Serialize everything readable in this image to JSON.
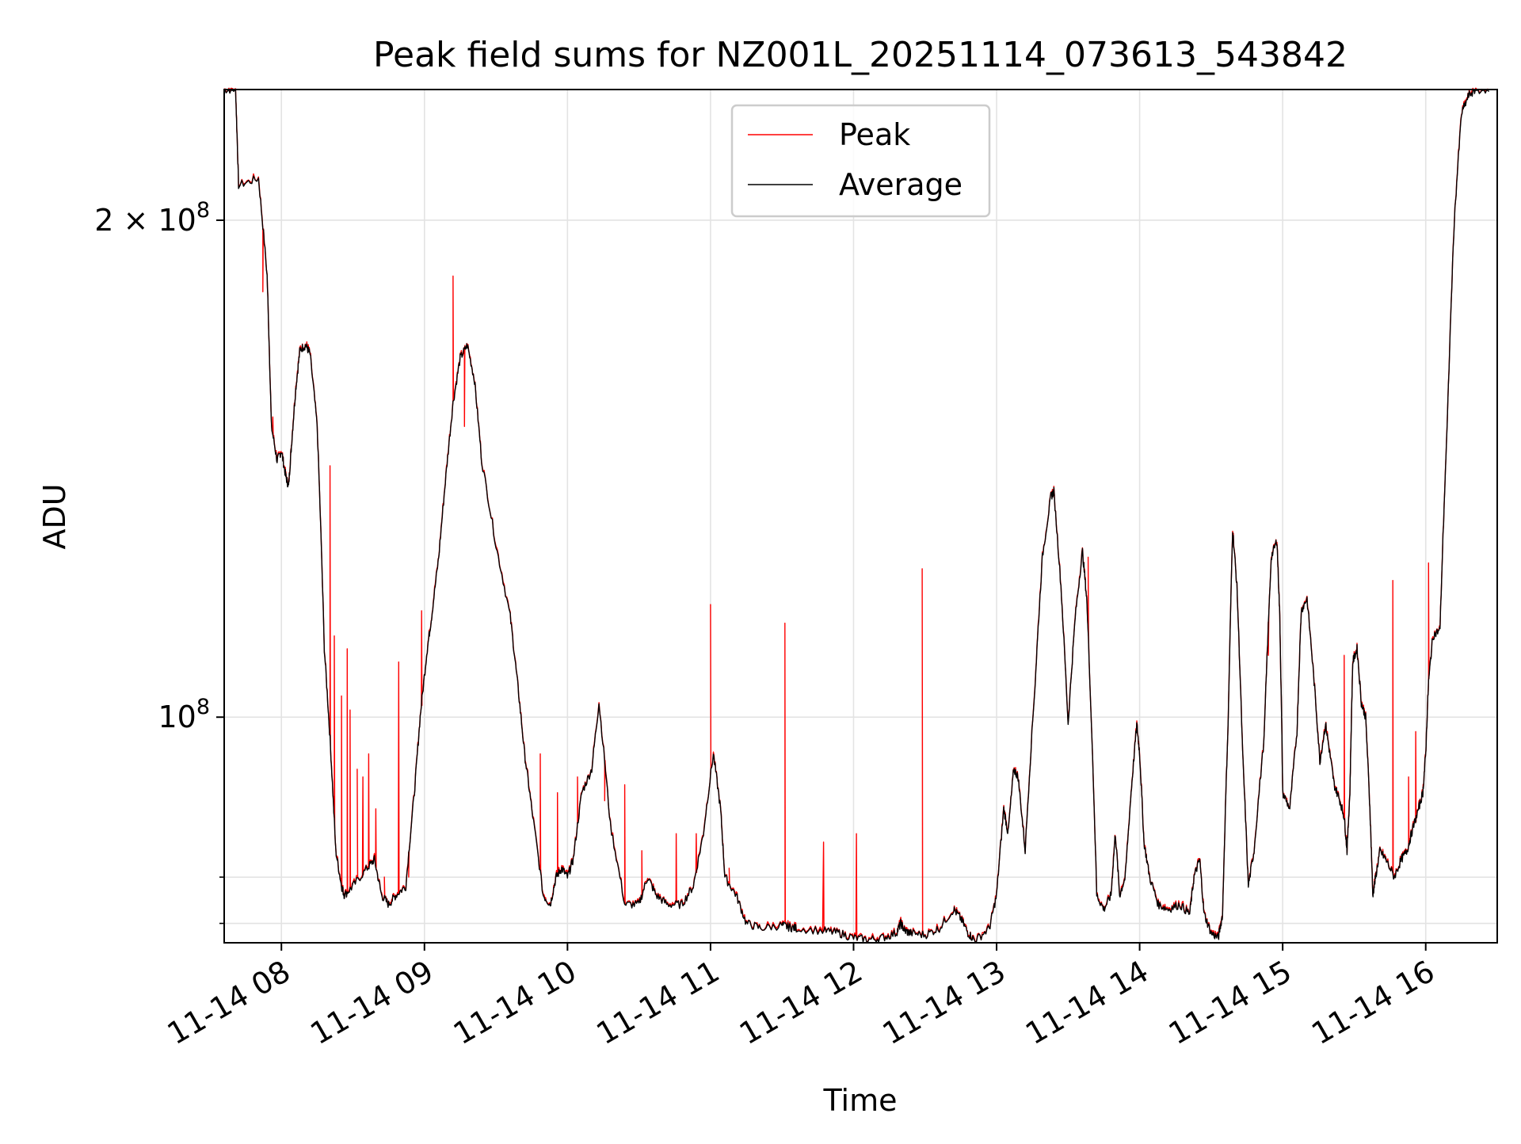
{
  "chart_data": {
    "type": "line",
    "title": "Peak field sums for NZ001L_20251114_073613_543842",
    "xlabel": "Time",
    "ylabel": "ADU",
    "yscale": "log",
    "grid": true,
    "legend_position": "top-center",
    "xlim": [
      7.6,
      16.5
    ],
    "ylim": [
      73000000,
      240000000
    ],
    "x_ticks": [
      {
        "value": 8,
        "label": "11-14 08"
      },
      {
        "value": 9,
        "label": "11-14 09"
      },
      {
        "value": 10,
        "label": "11-14 10"
      },
      {
        "value": 11,
        "label": "11-14 11"
      },
      {
        "value": 12,
        "label": "11-14 12"
      },
      {
        "value": 13,
        "label": "11-14 13"
      },
      {
        "value": 14,
        "label": "11-14 14"
      },
      {
        "value": 15,
        "label": "11-14 15"
      },
      {
        "value": 16,
        "label": "11-14 16"
      }
    ],
    "y_major_ticks": [
      {
        "value": 100000000,
        "label": "10",
        "sup": "8"
      },
      {
        "value": 200000000,
        "label": "2 × 10",
        "sup": "8"
      }
    ],
    "y_minor_ticks": [
      75000000,
      80000000
    ],
    "series": [
      {
        "name": "Average",
        "color": "#000000"
      },
      {
        "name": "Peak",
        "color": "#ff0000"
      }
    ],
    "average_x_hours": [
      7.6,
      7.68,
      7.7,
      7.84,
      7.9,
      7.93,
      7.97,
      8.0,
      8.03,
      8.05,
      8.07,
      8.1,
      8.13,
      8.17,
      8.2,
      8.25,
      8.3,
      8.34,
      8.38,
      8.42,
      8.44,
      8.5,
      8.6,
      8.65,
      8.7,
      8.75,
      8.8,
      8.87,
      8.93,
      8.97,
      9.02,
      9.05,
      9.1,
      9.15,
      9.2,
      9.25,
      9.3,
      9.35,
      9.4,
      9.5,
      9.6,
      9.65,
      9.7,
      9.75,
      9.83,
      9.88,
      9.92,
      9.96,
      10.0,
      10.04,
      10.1,
      10.17,
      10.22,
      10.3,
      10.4,
      10.5,
      10.56,
      10.62,
      10.7,
      10.8,
      10.88,
      10.95,
      11.02,
      11.07,
      11.1,
      11.18,
      11.25,
      11.35,
      11.5,
      11.55,
      11.6,
      11.8,
      11.9,
      12.0,
      12.1,
      12.2,
      12.3,
      12.33,
      12.36,
      12.4,
      12.5,
      12.6,
      12.7,
      12.75,
      12.8,
      12.85,
      12.95,
      13.0,
      13.05,
      13.08,
      13.12,
      13.15,
      13.2,
      13.27,
      13.32,
      13.38,
      13.4,
      13.45,
      13.5,
      13.55,
      13.6,
      13.63,
      13.7,
      13.75,
      13.8,
      13.83,
      13.86,
      13.9,
      13.94,
      13.98,
      14.0,
      14.03,
      14.07,
      14.13,
      14.2,
      14.28,
      14.35,
      14.38,
      14.42,
      14.45,
      14.5,
      14.55,
      14.58,
      14.62,
      14.65,
      14.68,
      14.72,
      14.76,
      14.8,
      14.87,
      14.92,
      14.96,
      14.98,
      15.0,
      15.05,
      15.1,
      15.13,
      15.17,
      15.22,
      15.26,
      15.3,
      15.33,
      15.36,
      15.4,
      15.43,
      15.45,
      15.47,
      15.49,
      15.52,
      15.55,
      15.58,
      15.61,
      15.63,
      15.65,
      15.68,
      15.72,
      15.78,
      15.83,
      15.87,
      15.9,
      15.95,
      15.98,
      16.0,
      16.02,
      16.05,
      16.1,
      16.15,
      16.2,
      16.25,
      16.3,
      16.35,
      16.45,
      16.5
    ],
    "average_values": [
      240000000,
      240000000,
      210000000,
      212000000,
      185000000,
      150000000,
      143000000,
      145000000,
      140000000,
      138000000,
      146000000,
      158000000,
      167000000,
      168000000,
      166000000,
      150000000,
      110000000,
      97000000,
      83000000,
      79000000,
      78000000,
      79000000,
      81000000,
      82000000,
      78000000,
      77000000,
      78000000,
      79000000,
      90000000,
      100000000,
      110000000,
      115000000,
      125000000,
      140000000,
      155000000,
      165000000,
      168000000,
      160000000,
      143000000,
      127000000,
      115000000,
      105000000,
      95000000,
      88000000,
      78000000,
      77000000,
      80000000,
      81000000,
      80000000,
      82000000,
      90000000,
      93000000,
      102000000,
      86000000,
      77000000,
      77000000,
      80000000,
      78000000,
      77000000,
      77000000,
      79000000,
      85000000,
      95000000,
      88000000,
      80000000,
      78000000,
      75000000,
      74500000,
      74800000,
      74600000,
      74500000,
      74200000,
      74000000,
      73500000,
      73300000,
      73500000,
      74000000,
      75000000,
      74200000,
      74000000,
      73800000,
      74500000,
      76500000,
      75500000,
      74000000,
      73200000,
      74500000,
      78000000,
      88000000,
      85000000,
      93000000,
      92000000,
      83000000,
      105000000,
      125000000,
      136000000,
      137000000,
      120000000,
      99000000,
      115000000,
      126000000,
      118000000,
      78000000,
      76500000,
      78000000,
      85000000,
      78000000,
      80000000,
      90000000,
      99000000,
      95000000,
      84000000,
      80000000,
      77000000,
      76500000,
      77000000,
      76000000,
      80000000,
      82000000,
      76000000,
      74000000,
      73500000,
      76000000,
      100000000,
      130000000,
      120000000,
      95000000,
      79000000,
      83000000,
      97000000,
      125000000,
      128000000,
      115000000,
      90000000,
      88000000,
      98000000,
      116000000,
      118000000,
      105000000,
      94000000,
      99000000,
      95000000,
      91000000,
      89000000,
      87000000,
      83000000,
      90000000,
      108000000,
      110000000,
      102000000,
      100000000,
      88000000,
      78000000,
      80000000,
      83000000,
      82000000,
      80000000,
      82000000,
      83000000,
      85000000,
      88000000,
      90000000,
      95000000,
      105000000,
      112000000,
      113000000,
      150000000,
      200000000,
      232000000,
      238000000,
      240000000,
      240000000
    ],
    "peak_spikes": [
      [
        7.87,
        181000000
      ],
      [
        7.94,
        152000000
      ],
      [
        8.34,
        142000000
      ],
      [
        8.37,
        112000000
      ],
      [
        8.42,
        103000000
      ],
      [
        8.46,
        110000000
      ],
      [
        8.48,
        101000000
      ],
      [
        8.53,
        93000000
      ],
      [
        8.57,
        92000000
      ],
      [
        8.61,
        95000000
      ],
      [
        8.66,
        88000000
      ],
      [
        8.72,
        80000000
      ],
      [
        8.82,
        108000000
      ],
      [
        8.89,
        80000000
      ],
      [
        8.98,
        116000000
      ],
      [
        9.2,
        185000000
      ],
      [
        9.28,
        150000000
      ],
      [
        9.72,
        93000000
      ],
      [
        9.81,
        95000000
      ],
      [
        9.93,
        90000000
      ],
      [
        10.07,
        92000000
      ],
      [
        10.26,
        89000000
      ],
      [
        10.4,
        91000000
      ],
      [
        10.52,
        83000000
      ],
      [
        10.76,
        85000000
      ],
      [
        10.9,
        85000000
      ],
      [
        11.0,
        117000000
      ],
      [
        11.13,
        81000000
      ],
      [
        11.52,
        114000000
      ],
      [
        11.79,
        84000000
      ],
      [
        12.02,
        85000000
      ],
      [
        12.48,
        123000000
      ],
      [
        13.64,
        125000000
      ],
      [
        14.9,
        109000000
      ],
      [
        15.43,
        109000000
      ],
      [
        15.77,
        121000000
      ],
      [
        15.88,
        92000000
      ],
      [
        15.93,
        98000000
      ],
      [
        16.02,
        124000000
      ]
    ]
  }
}
